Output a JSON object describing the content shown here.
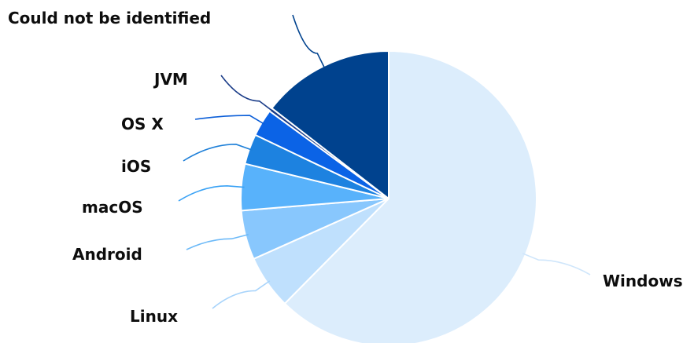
{
  "chart_data": {
    "type": "pie",
    "title": "",
    "start_angle_deg": 0,
    "direction": "clockwise",
    "slices": [
      {
        "label": "Windows",
        "value": 62.4,
        "color": "#dcedfc",
        "line_color": "#cfe6fb"
      },
      {
        "label": "Linux",
        "value": 5.9,
        "color": "#bfe0fd",
        "line_color": "#a8d4fb"
      },
      {
        "label": "Android",
        "value": 5.4,
        "color": "#88c7fd",
        "line_color": "#6dbaf8"
      },
      {
        "label": "macOS",
        "value": 5.1,
        "color": "#58b2fb",
        "line_color": "#3aa2f5"
      },
      {
        "label": "iOS",
        "value": 3.3,
        "color": "#1d82e0",
        "line_color": "#1d7fd8"
      },
      {
        "label": "OS X",
        "value": 3.0,
        "color": "#0b63e6",
        "line_color": "#0b5ed8"
      },
      {
        "label": "JVM",
        "value": 0.4,
        "color": "#1a3c88",
        "line_color": "#1a3c88"
      },
      {
        "label": "Could not be identified",
        "value": 14.5,
        "color": "#00428e",
        "line_color": "#00428e"
      }
    ]
  }
}
